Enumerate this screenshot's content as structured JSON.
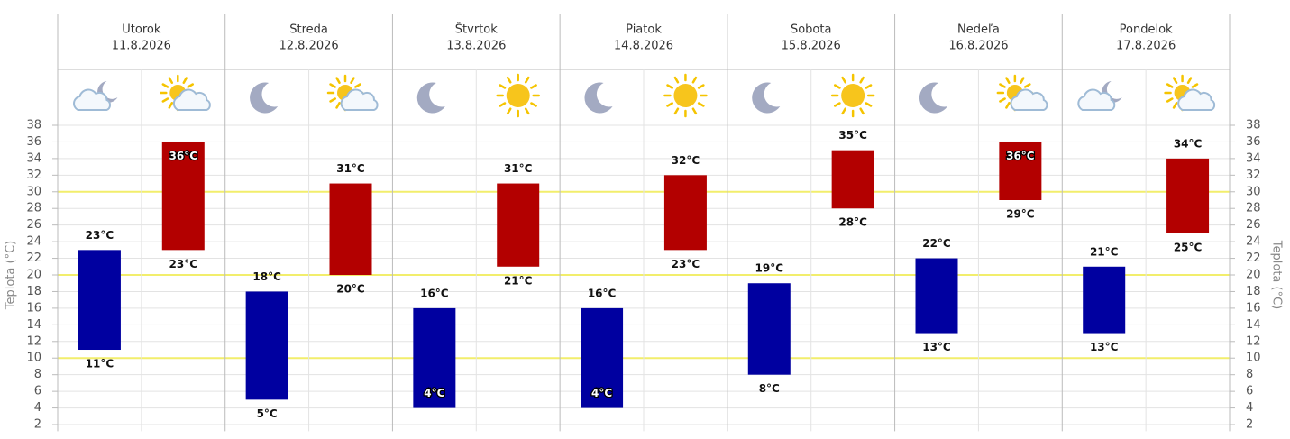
{
  "chart_data": {
    "type": "range-bar",
    "y_label": "Teplota (°C)",
    "categories": [
      "Utorok",
      "Streda",
      "Štvrtok",
      "Piatok",
      "Sobota",
      "Nedeľa",
      "Pondelok"
    ],
    "dates": [
      "11.8.2026",
      "12.8.2026",
      "13.8.2026",
      "14.8.2026",
      "15.8.2026",
      "16.8.2026",
      "17.8.2026"
    ],
    "night": {
      "color": "#0000a0",
      "icons": [
        "moon-cloud",
        "moon",
        "moon",
        "moon",
        "moon",
        "moon",
        "moon-cloud"
      ],
      "low": [
        11,
        5,
        4,
        4,
        8,
        13,
        13
      ],
      "high": [
        23,
        18,
        16,
        16,
        19,
        22,
        21
      ],
      "low_labels": [
        "11°C",
        "5°C",
        "4°C",
        "4°C",
        "8°C",
        "13°C",
        "13°C"
      ],
      "high_labels": [
        "23°C",
        "18°C",
        "16°C",
        "16°C",
        "19°C",
        "22°C",
        "21°C"
      ]
    },
    "day": {
      "color": "#b30000",
      "icons": [
        "sun-cloud",
        "sun-cloud",
        "sun",
        "sun",
        "sun",
        "sun-cloud",
        "sun-cloud"
      ],
      "low": [
        23,
        20,
        21,
        23,
        28,
        29,
        25
      ],
      "high": [
        36,
        31,
        31,
        32,
        35,
        36,
        34
      ],
      "low_labels": [
        "23°C",
        "20°C",
        "21°C",
        "23°C",
        "28°C",
        "29°C",
        "25°C"
      ],
      "high_labels": [
        "36°C",
        "31°C",
        "31°C",
        "32°C",
        "35°C",
        "36°C",
        "34°C"
      ]
    },
    "ylim": [
      1.2,
      38.4
    ],
    "yticks": [
      2,
      4,
      6,
      8,
      10,
      12,
      14,
      16,
      18,
      20,
      22,
      24,
      26,
      28,
      30,
      32,
      34,
      36,
      38
    ],
    "grid": true,
    "reference_lines": [
      10,
      20,
      30
    ],
    "reference_color": "#f2ee6c"
  }
}
